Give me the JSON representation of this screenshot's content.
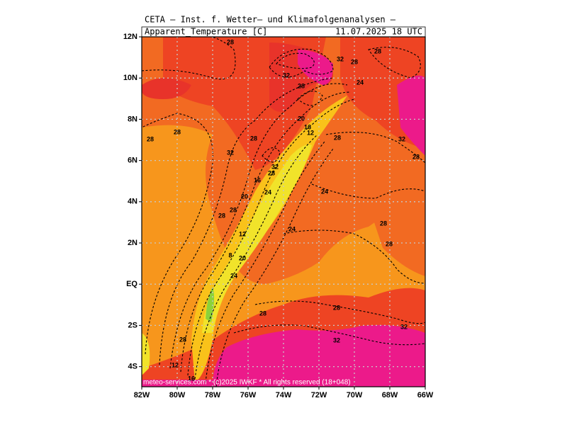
{
  "header": {
    "title": "CETA — Inst. f. Wetter– und Klimafolgenanalysen —",
    "variable": "Apparent_Temperature [C]",
    "valid_time": "11.07.2025 18 UTC"
  },
  "axes": {
    "latitude_labels": [
      "12N",
      "10N",
      "8N",
      "6N",
      "4N",
      "2N",
      "EQ",
      "2S",
      "4S"
    ],
    "longitude_labels": [
      "82W",
      "80W",
      "78W",
      "76W",
      "74W",
      "72W",
      "70W",
      "68W",
      "66W"
    ]
  },
  "contour_labels": [
    "28",
    "32",
    "28",
    "28",
    "32",
    "28",
    "24",
    "20",
    "16",
    "12",
    "28",
    "28",
    "28",
    "28",
    "32",
    "28",
    "32",
    "32",
    "28",
    "16",
    "24",
    "24",
    "20",
    "28",
    "28",
    "24",
    "28",
    "12",
    "28",
    "8",
    "20",
    "24",
    "28",
    "28",
    "32",
    "32",
    "28",
    "12",
    "16"
  ],
  "footer": "meteo-services.com * (c)2025 IWKF * All rights reserved (18+048)"
}
